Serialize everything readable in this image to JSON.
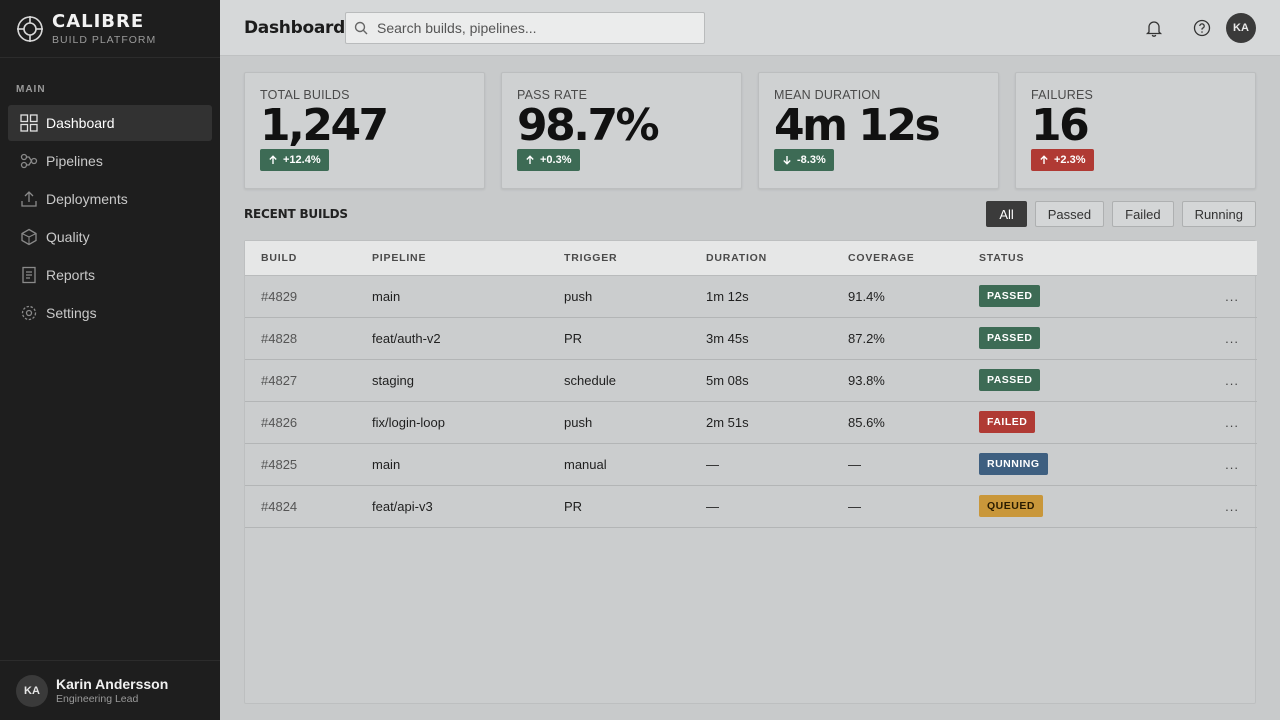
{
  "brand": {
    "name": "CALIBRE",
    "subtitle": "BUILD PLATFORM"
  },
  "sidebar": {
    "section_label": "MAIN",
    "items": [
      {
        "label": "Dashboard",
        "icon": "grid-icon",
        "active": true
      },
      {
        "label": "Pipelines",
        "icon": "pipeline-icon",
        "active": false
      },
      {
        "label": "Deployments",
        "icon": "upload-icon",
        "active": false
      },
      {
        "label": "Quality",
        "icon": "cube-icon",
        "active": false
      },
      {
        "label": "Reports",
        "icon": "document-icon",
        "active": false
      },
      {
        "label": "Settings",
        "icon": "gear-icon",
        "active": false
      }
    ],
    "user": {
      "initials": "KA",
      "name": "Karin Andersson",
      "role": "Engineering Lead"
    }
  },
  "header": {
    "title": "Dashboard",
    "search_placeholder": "Search builds, pipelines...",
    "avatar_initials": "KA",
    "icons": [
      "bell-icon",
      "help-icon"
    ]
  },
  "stats": [
    {
      "label": "TOTAL BUILDS",
      "value": "1,247",
      "delta": "+12.4%",
      "trend": "up",
      "tone": "good"
    },
    {
      "label": "PASS RATE",
      "value": "98.7%",
      "delta": "+0.3%",
      "trend": "up",
      "tone": "good"
    },
    {
      "label": "MEAN DURATION",
      "value": "4m 12s",
      "delta": "-8.3%",
      "trend": "down",
      "tone": "good"
    },
    {
      "label": "FAILURES",
      "value": "16",
      "delta": "+2.3%",
      "trend": "up",
      "tone": "bad"
    }
  ],
  "recent": {
    "title": "RECENT BUILDS",
    "filters": [
      {
        "label": "All",
        "active": true
      },
      {
        "label": "Passed",
        "active": false
      },
      {
        "label": "Failed",
        "active": false
      },
      {
        "label": "Running",
        "active": false
      }
    ],
    "columns": [
      "BUILD",
      "PIPELINE",
      "TRIGGER",
      "DURATION",
      "COVERAGE",
      "STATUS"
    ],
    "rows": [
      {
        "build": "#4829",
        "pipeline": "main",
        "trigger": "push",
        "duration": "1m 12s",
        "coverage": "91.4%",
        "status": "PASSED",
        "kind": "passed",
        "menu": "..."
      },
      {
        "build": "#4828",
        "pipeline": "feat/auth-v2",
        "trigger": "PR",
        "duration": "3m 45s",
        "coverage": "87.2%",
        "status": "PASSED",
        "kind": "passed",
        "menu": "..."
      },
      {
        "build": "#4827",
        "pipeline": "staging",
        "trigger": "schedule",
        "duration": "5m 08s",
        "coverage": "93.8%",
        "status": "PASSED",
        "kind": "passed",
        "menu": "..."
      },
      {
        "build": "#4826",
        "pipeline": "fix/login-loop",
        "trigger": "push",
        "duration": "2m 51s",
        "coverage": "85.6%",
        "status": "FAILED",
        "kind": "failed",
        "menu": "..."
      },
      {
        "build": "#4825",
        "pipeline": "main",
        "trigger": "manual",
        "duration": "—",
        "coverage": "—",
        "status": "RUNNING",
        "kind": "running",
        "menu": "..."
      },
      {
        "build": "#4824",
        "pipeline": "feat/api-v3",
        "trigger": "PR",
        "duration": "—",
        "coverage": "—",
        "status": "QUEUED",
        "kind": "queued",
        "menu": "..."
      }
    ]
  },
  "colors": {
    "sidebar_bg": "#1e1e1e",
    "passed": "#3d6b55",
    "failed": "#b03a34",
    "running": "#3e5f80",
    "queued": "#c9973a"
  }
}
